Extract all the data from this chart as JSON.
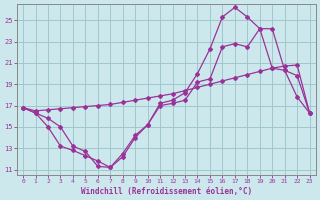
{
  "background_color": "#cde8ec",
  "grid_color": "#a0c8cc",
  "line_color": "#993399",
  "spine_color": "#888888",
  "xlim": [
    -0.5,
    23.5
  ],
  "ylim": [
    10.5,
    26.5
  ],
  "yticks": [
    11,
    13,
    15,
    17,
    19,
    21,
    23,
    25
  ],
  "xticks": [
    0,
    1,
    2,
    3,
    4,
    5,
    6,
    7,
    8,
    9,
    10,
    11,
    12,
    13,
    14,
    15,
    16,
    17,
    18,
    19,
    20,
    21,
    22,
    23
  ],
  "xlabel": "Windchill (Refroidissement éolien,°C)",
  "line1_x": [
    0,
    1,
    2,
    3,
    4,
    5,
    6,
    7,
    8,
    9,
    10,
    11,
    12,
    13,
    14,
    15,
    16,
    17,
    18,
    19,
    20,
    21,
    22,
    23
  ],
  "line1_y": [
    16.8,
    16.3,
    15.8,
    15.0,
    13.2,
    12.7,
    11.3,
    11.2,
    12.2,
    14.0,
    15.2,
    17.0,
    17.2,
    17.5,
    19.2,
    19.5,
    22.5,
    22.8,
    22.5,
    24.2,
    20.5,
    20.3,
    19.8,
    16.3
  ],
  "line2_x": [
    0,
    1,
    2,
    3,
    4,
    5,
    6,
    7,
    8,
    9,
    10,
    11,
    12,
    13,
    14,
    15,
    16,
    17,
    18,
    19,
    20,
    21,
    22,
    23
  ],
  "line2_y": [
    16.8,
    16.5,
    16.6,
    16.7,
    16.8,
    16.9,
    17.0,
    17.1,
    17.3,
    17.5,
    17.7,
    17.9,
    18.1,
    18.4,
    18.7,
    19.0,
    19.3,
    19.6,
    19.9,
    20.2,
    20.5,
    20.7,
    20.8,
    16.3
  ],
  "line3_x": [
    0,
    1,
    2,
    3,
    4,
    5,
    6,
    7,
    8,
    9,
    10,
    11,
    12,
    13,
    14,
    15,
    16,
    17,
    18,
    19,
    20,
    21,
    22,
    23
  ],
  "line3_y": [
    16.8,
    16.3,
    15.0,
    13.2,
    12.8,
    12.3,
    11.8,
    11.2,
    12.5,
    14.2,
    15.2,
    17.2,
    17.5,
    18.2,
    20.0,
    22.3,
    25.3,
    26.2,
    25.3,
    24.2,
    24.2,
    20.3,
    17.8,
    16.3
  ]
}
